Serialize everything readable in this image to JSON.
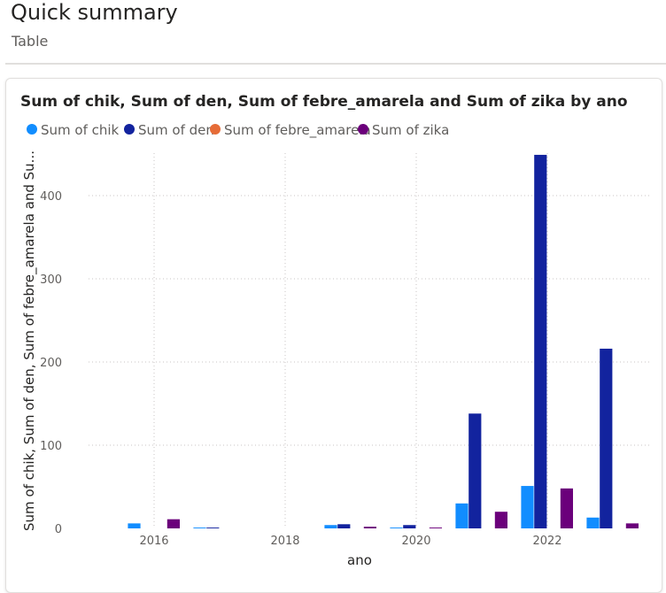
{
  "page": {
    "title": "Quick summary",
    "subtitle": "Table"
  },
  "chart_data": {
    "type": "bar",
    "title": "Sum of chik, Sum of den, Sum of febre_amarela and Sum of zika by ano",
    "xlabel": "ano",
    "ylabel": "Sum of chik, Sum of den, Sum of febre_amarela and Su...",
    "x": [
      2016,
      2017,
      2018,
      2019,
      2020,
      2021,
      2022,
      2023
    ],
    "x_ticks": [
      "2016",
      "2018",
      "2020",
      "2022"
    ],
    "y_ticks": [
      "0",
      "100",
      "200",
      "300",
      "400"
    ],
    "ylim": [
      0,
      450
    ],
    "legend_position": "top-left",
    "grid": "dotted",
    "series": [
      {
        "name": "Sum of chik",
        "color": "#118DFF",
        "values": [
          6,
          1,
          0,
          4,
          1,
          30,
          51,
          13
        ]
      },
      {
        "name": "Sum of den",
        "color": "#12239E",
        "values": [
          0,
          1,
          0,
          5,
          4,
          138,
          449,
          216
        ]
      },
      {
        "name": "Sum of febre_amarela",
        "color": "#E66C37",
        "values": [
          0,
          0,
          0,
          0,
          0,
          0,
          0,
          0
        ]
      },
      {
        "name": "Sum of zika",
        "color": "#6B007B",
        "values": [
          11,
          0,
          0,
          2,
          1,
          20,
          48,
          6
        ]
      }
    ]
  }
}
